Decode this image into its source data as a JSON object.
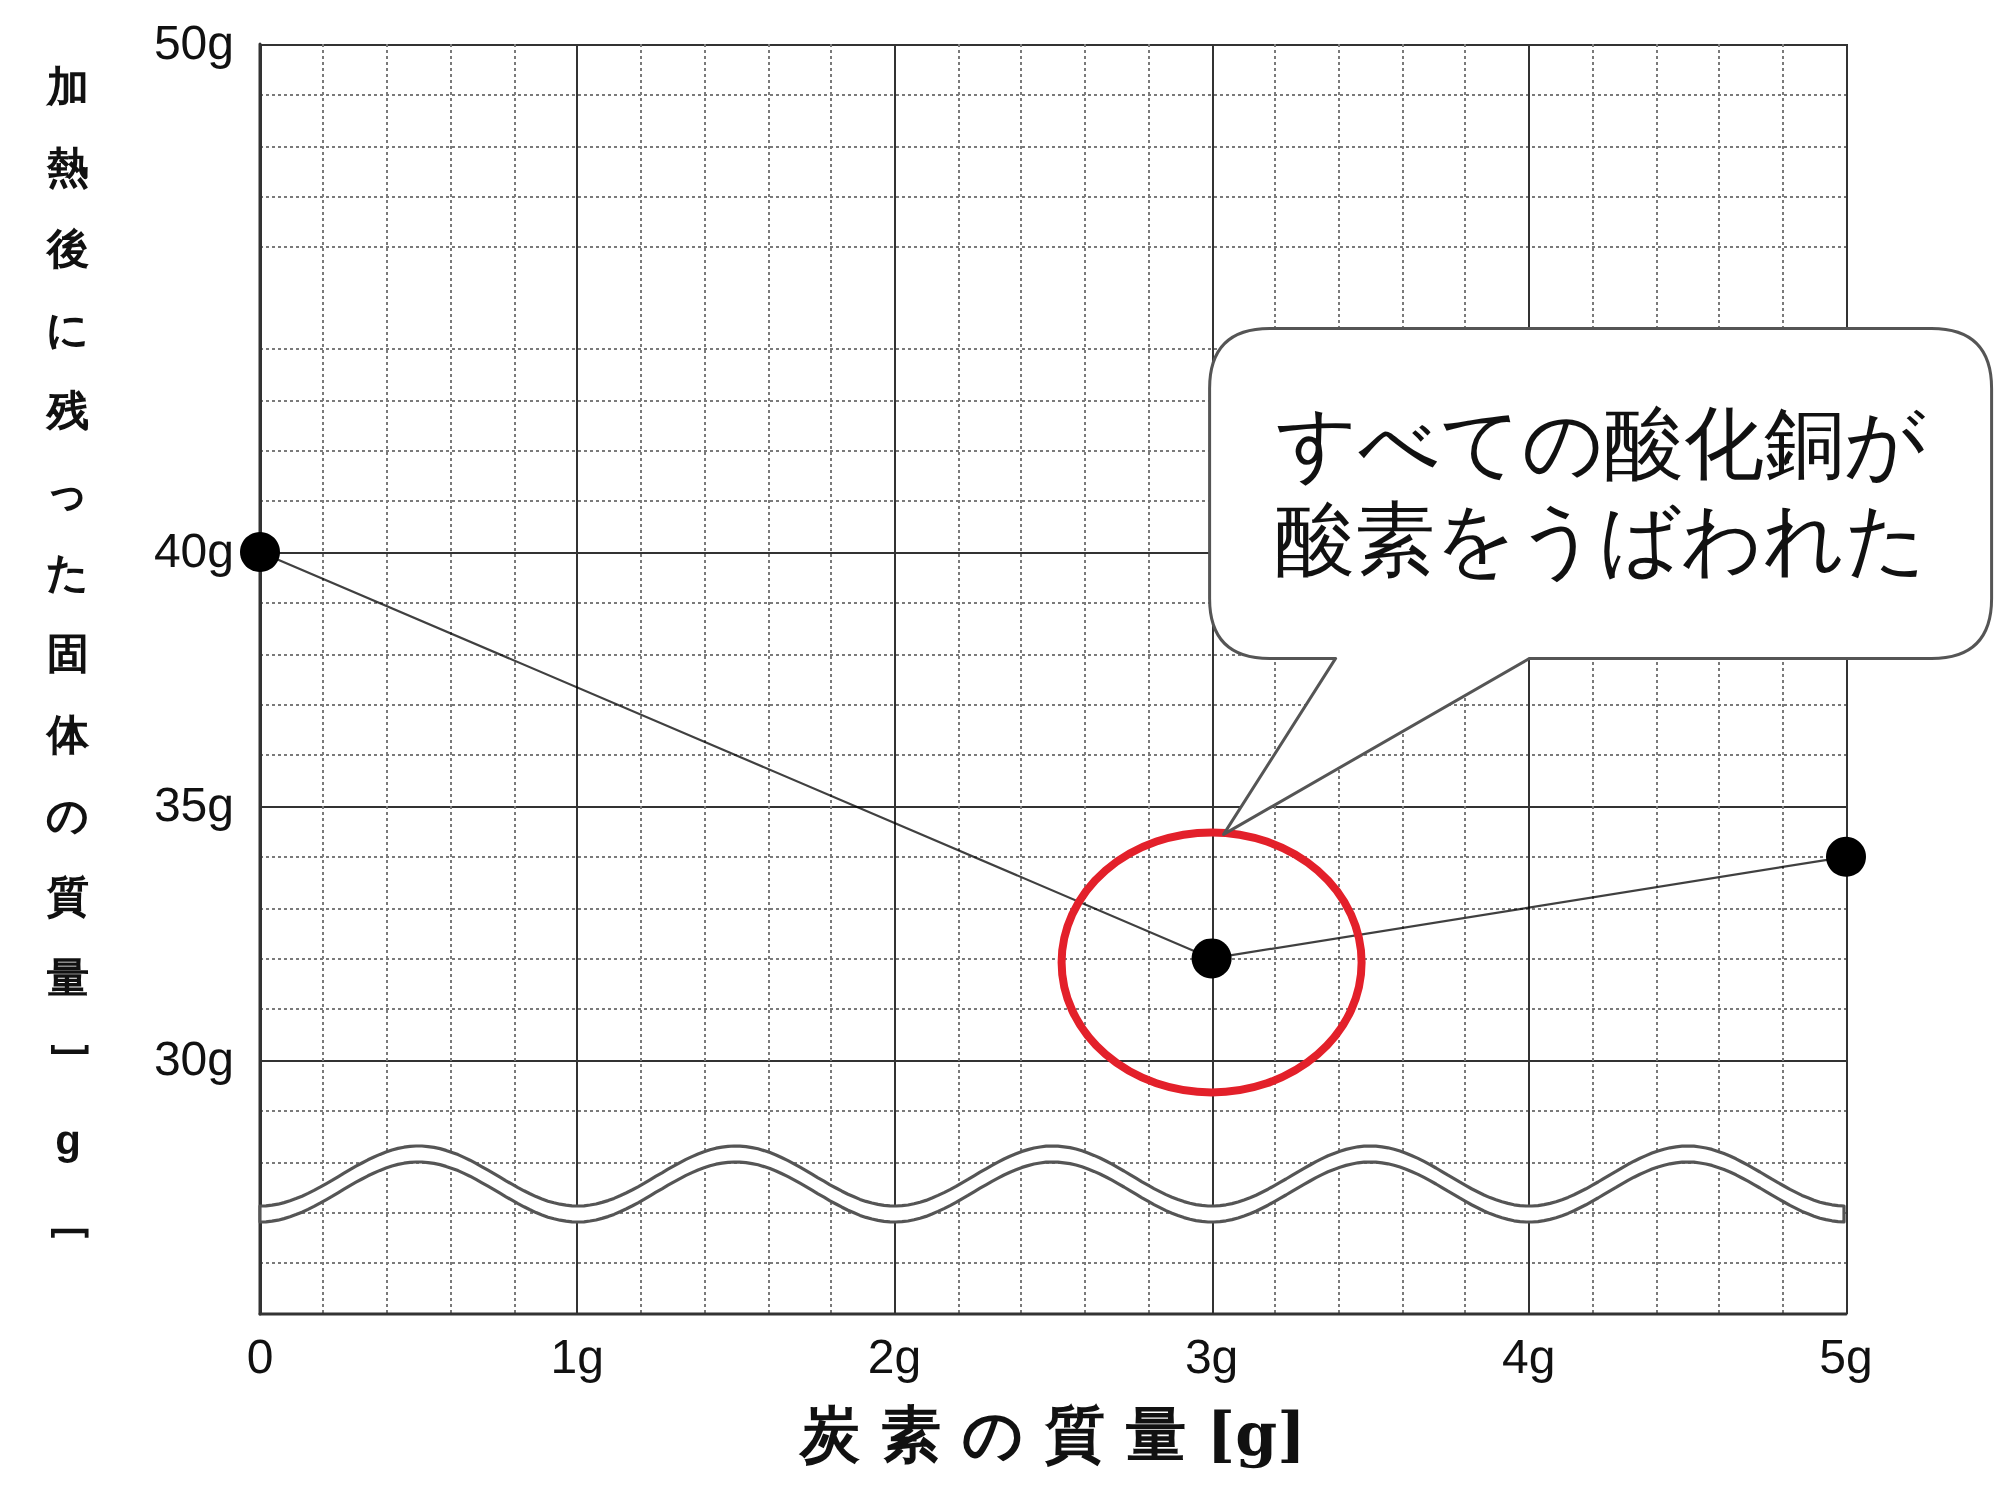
{
  "chart_data": {
    "type": "line",
    "xlabel": "炭 素 の 質 量 [g]",
    "ylabel": "加熱後に残った固体の質量﹇g﹈",
    "x": [
      0,
      3,
      5
    ],
    "series": [
      {
        "color": "#000000",
        "values": [
          40,
          32,
          34
        ]
      }
    ],
    "xlim": [
      0,
      5
    ],
    "ylim": [
      25,
      50
    ],
    "xticks": [
      0,
      {
        "value": 1,
        "label": "1g"
      },
      {
        "value": 2,
        "label": "2g"
      },
      {
        "value": 3,
        "label": "3g"
      },
      {
        "value": 4,
        "label": "4g"
      },
      {
        "value": 5,
        "label": "5g"
      }
    ],
    "yticks": [
      {
        "value": 30,
        "label": "30g"
      },
      {
        "value": 35,
        "label": "35g"
      },
      {
        "value": 40,
        "label": "40g"
      },
      {
        "value": 50,
        "label": "50g"
      }
    ],
    "grid": true,
    "marker": "circle",
    "line_style": "solid",
    "annotations": [
      "すべての酸化銅が酸素をうばわれた"
    ]
  }
}
